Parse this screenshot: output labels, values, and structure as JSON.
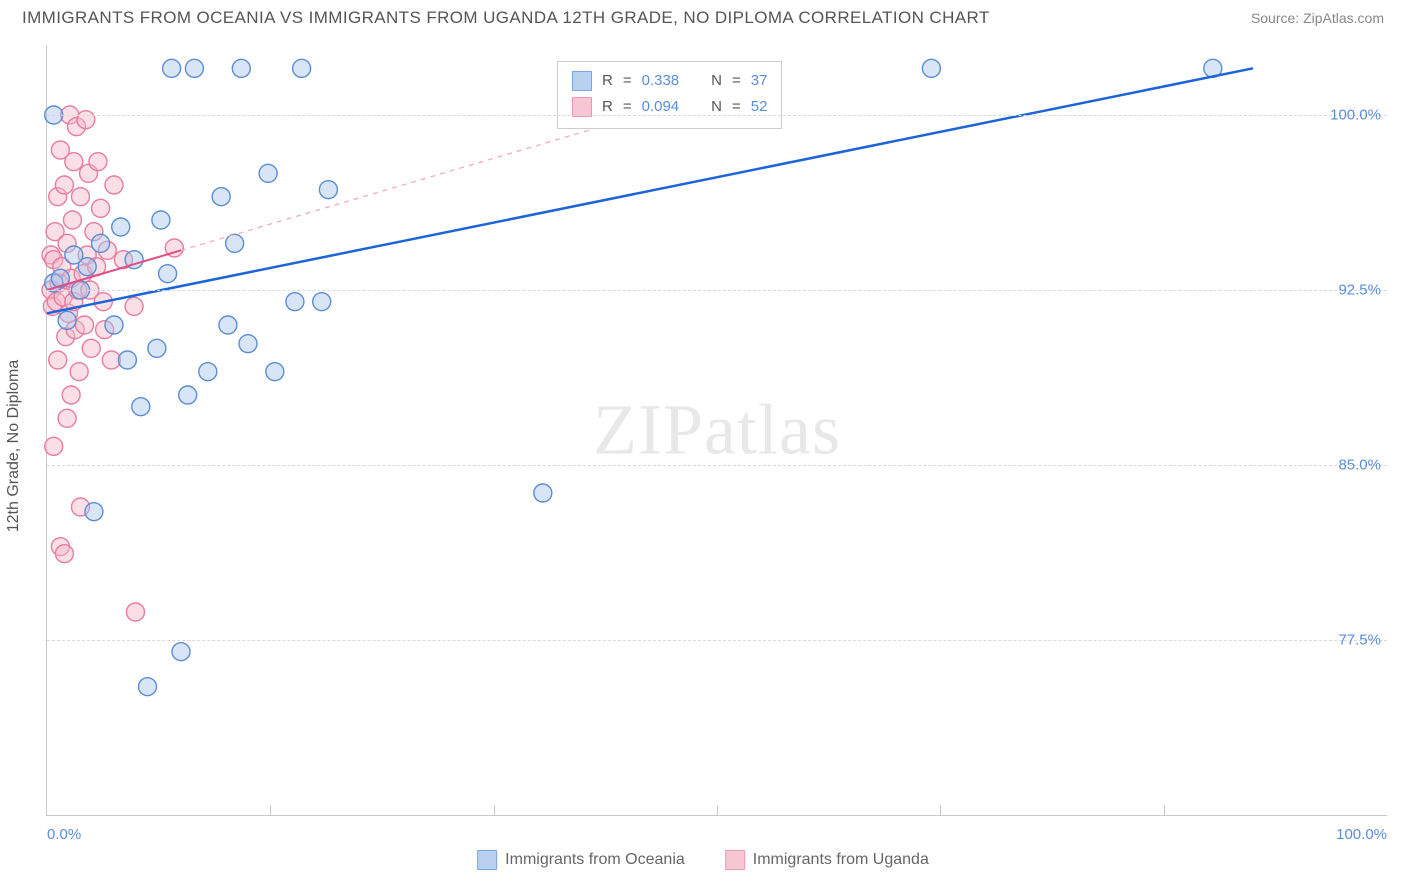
{
  "title": "IMMIGRANTS FROM OCEANIA VS IMMIGRANTS FROM UGANDA 12TH GRADE, NO DIPLOMA CORRELATION CHART",
  "source": "Source: ZipAtlas.com",
  "y_axis_label": "12th Grade, No Diploma",
  "watermark_a": "ZIP",
  "watermark_b": "atlas",
  "chart": {
    "type": "scatter",
    "background_color": "#ffffff",
    "grid_color": "#d8d8d8",
    "axis_color": "#c8c8c8",
    "xlim": [
      0,
      100
    ],
    "ylim": [
      70,
      103
    ],
    "x_ticks": [
      0,
      100
    ],
    "x_tick_labels": [
      "0.0%",
      "100.0%"
    ],
    "x_minor_ticks": [
      16.67,
      33.33,
      50,
      66.67,
      83.33
    ],
    "y_ticks": [
      77.5,
      85.0,
      92.5,
      100.0
    ],
    "y_tick_labels": [
      "77.5%",
      "85.0%",
      "92.5%",
      "100.0%"
    ],
    "marker_radius": 9,
    "marker_stroke_width": 1.4,
    "series": [
      {
        "name": "Immigrants from Oceania",
        "fill": "#a8c6ea",
        "stroke": "#5b8dd6",
        "fill_opacity": 0.45,
        "r_value": "0.338",
        "n_value": "37",
        "regression": {
          "x1": 0,
          "y1": 91.5,
          "x2": 90,
          "y2": 102.0,
          "stroke": "#1c64d8",
          "width": 2.5,
          "dash": "none"
        },
        "extrapolation": null,
        "points": [
          [
            0.5,
            92.8
          ],
          [
            0.5,
            100
          ],
          [
            1.0,
            93.0
          ],
          [
            1.5,
            91.2
          ],
          [
            2.0,
            94.0
          ],
          [
            2.5,
            92.5
          ],
          [
            3.0,
            93.5
          ],
          [
            3.5,
            83.0
          ],
          [
            4.0,
            94.5
          ],
          [
            5.0,
            91.0
          ],
          [
            5.5,
            95.2
          ],
          [
            6.0,
            89.5
          ],
          [
            6.5,
            93.8
          ],
          [
            7.0,
            87.5
          ],
          [
            7.5,
            75.5
          ],
          [
            8.2,
            90.0
          ],
          [
            8.5,
            95.5
          ],
          [
            9.0,
            93.2
          ],
          [
            9.3,
            102.0
          ],
          [
            10.0,
            77.0
          ],
          [
            10.5,
            88.0
          ],
          [
            11.0,
            102.0
          ],
          [
            12.0,
            89.0
          ],
          [
            13.0,
            96.5
          ],
          [
            13.5,
            91.0
          ],
          [
            14.0,
            94.5
          ],
          [
            14.5,
            102.0
          ],
          [
            15.0,
            90.2
          ],
          [
            16.5,
            97.5
          ],
          [
            17.0,
            89.0
          ],
          [
            18.5,
            92.0
          ],
          [
            19.0,
            102.0
          ],
          [
            20.5,
            92.0
          ],
          [
            21.0,
            96.8
          ],
          [
            37.0,
            83.8
          ],
          [
            66.0,
            102.0
          ],
          [
            87.0,
            102.0
          ]
        ]
      },
      {
        "name": "Immigrants from Uganda",
        "fill": "#f5b8c8",
        "stroke": "#e87ca0",
        "fill_opacity": 0.45,
        "r_value": "0.094",
        "n_value": "52",
        "regression": {
          "x1": 0,
          "y1": 92.5,
          "x2": 10,
          "y2": 94.2,
          "stroke": "#e05080",
          "width": 2,
          "dash": "none"
        },
        "extrapolation": {
          "x1": 10,
          "y1": 94.2,
          "x2": 52,
          "y2": 101.3,
          "stroke": "#f0a8bc",
          "width": 1.2,
          "dash": "5,5"
        },
        "points": [
          [
            0.3,
            92.5
          ],
          [
            0.3,
            94.0
          ],
          [
            0.4,
            91.8
          ],
          [
            0.5,
            93.8
          ],
          [
            0.5,
            85.8
          ],
          [
            0.6,
            95.0
          ],
          [
            0.7,
            92.0
          ],
          [
            0.8,
            96.5
          ],
          [
            0.8,
            89.5
          ],
          [
            0.9,
            92.8
          ],
          [
            1.0,
            98.5
          ],
          [
            1.0,
            81.5
          ],
          [
            1.1,
            93.5
          ],
          [
            1.2,
            92.2
          ],
          [
            1.3,
            97.0
          ],
          [
            1.3,
            81.2
          ],
          [
            1.4,
            90.5
          ],
          [
            1.5,
            87.0
          ],
          [
            1.5,
            94.5
          ],
          [
            1.6,
            91.5
          ],
          [
            1.7,
            100.0
          ],
          [
            1.8,
            93.0
          ],
          [
            1.8,
            88.0
          ],
          [
            1.9,
            95.5
          ],
          [
            2.0,
            92.0
          ],
          [
            2.0,
            98.0
          ],
          [
            2.1,
            90.8
          ],
          [
            2.2,
            99.5
          ],
          [
            2.3,
            92.5
          ],
          [
            2.4,
            89.0
          ],
          [
            2.5,
            96.5
          ],
          [
            2.5,
            83.2
          ],
          [
            2.7,
            93.2
          ],
          [
            2.8,
            91.0
          ],
          [
            2.9,
            99.8
          ],
          [
            3.0,
            94.0
          ],
          [
            3.1,
            97.5
          ],
          [
            3.2,
            92.5
          ],
          [
            3.3,
            90.0
          ],
          [
            3.5,
            95.0
          ],
          [
            3.7,
            93.5
          ],
          [
            3.8,
            98.0
          ],
          [
            4.0,
            96.0
          ],
          [
            4.2,
            92.0
          ],
          [
            4.3,
            90.8
          ],
          [
            4.5,
            94.2
          ],
          [
            4.8,
            89.5
          ],
          [
            5.0,
            97.0
          ],
          [
            5.7,
            93.8
          ],
          [
            6.5,
            91.8
          ],
          [
            6.6,
            78.7
          ],
          [
            9.5,
            94.3
          ]
        ]
      }
    ],
    "legend_labels": {
      "series1": "Immigrants from Oceania",
      "series2": "Immigrants from Uganda",
      "r_label": "R",
      "n_label": "N",
      "eq": "="
    }
  }
}
